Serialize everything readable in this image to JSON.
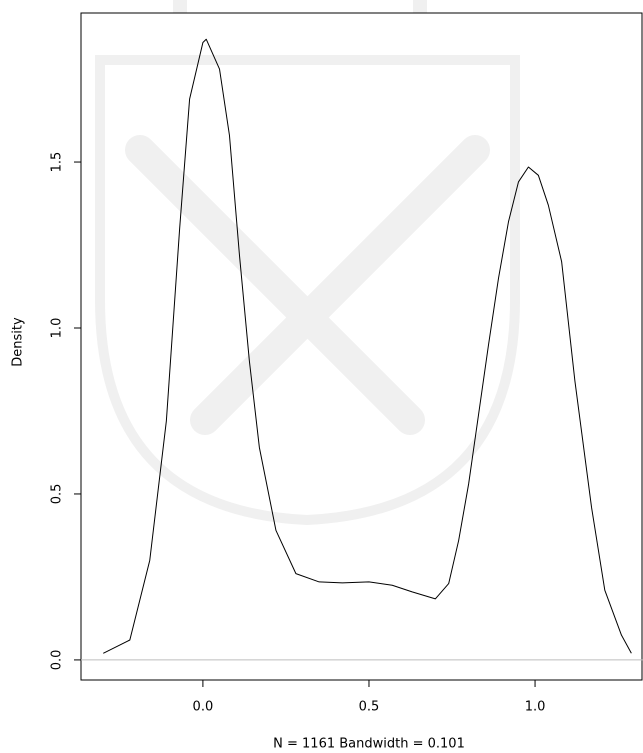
{
  "chart_data": {
    "type": "line",
    "x_label": "N = 1161   Bandwidth = 0.101",
    "y_label": "Density",
    "x": [
      -0.3,
      -0.22,
      -0.16,
      -0.11,
      -0.07,
      -0.04,
      0.0,
      0.01,
      0.05,
      0.08,
      0.11,
      0.14,
      0.17,
      0.22,
      0.28,
      0.35,
      0.42,
      0.5,
      0.57,
      0.63,
      0.7,
      0.74,
      0.77,
      0.8,
      0.83,
      0.86,
      0.89,
      0.92,
      0.95,
      0.98,
      1.01,
      1.04,
      1.08,
      1.12,
      1.17,
      1.21,
      1.26,
      1.29
    ],
    "values": [
      0.02,
      0.06,
      0.3,
      0.72,
      1.3,
      1.69,
      1.86,
      1.87,
      1.78,
      1.58,
      1.22,
      0.9,
      0.64,
      0.39,
      0.26,
      0.235,
      0.232,
      0.235,
      0.225,
      0.205,
      0.184,
      0.23,
      0.36,
      0.53,
      0.74,
      0.95,
      1.15,
      1.32,
      1.44,
      1.485,
      1.46,
      1.37,
      1.2,
      0.84,
      0.46,
      0.21,
      0.075,
      0.02
    ],
    "color": "#000000",
    "xlim": [
      -0.367,
      1.325
    ],
    "ylim": [
      -0.0605,
      1.949
    ],
    "xticks": [
      {
        "value": 0,
        "label": "0.0"
      },
      {
        "value": 0.5,
        "label": "0.5"
      },
      {
        "value": 1,
        "label": "1.0"
      }
    ],
    "yticks": [
      {
        "value": 0,
        "label": "0.0"
      },
      {
        "value": 0.5,
        "label": "0.5"
      },
      {
        "value": 1,
        "label": "1.0"
      },
      {
        "value": 1.5,
        "label": "1.5"
      }
    ],
    "zero_line_color": "#bebebe"
  }
}
